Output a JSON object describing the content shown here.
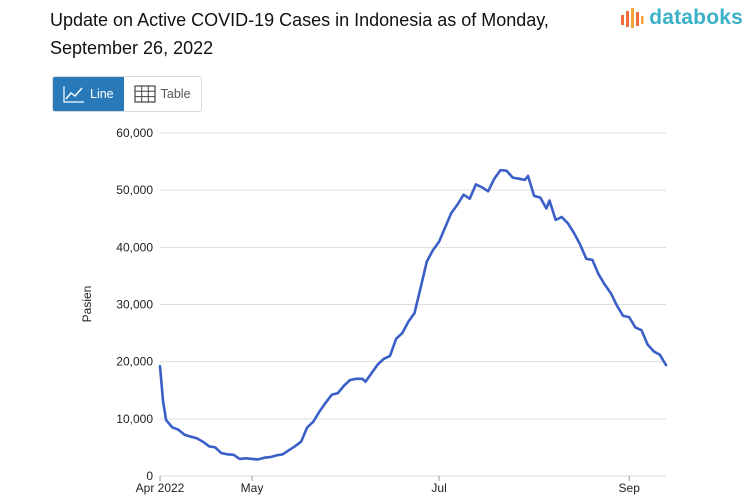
{
  "header": {
    "title_line1": "Update on Active COVID-19 Cases in Indonesia as of Monday,",
    "title_line2": "September 26, 2022",
    "brand": "databoks",
    "brand_icon": "databoks-logo-icon"
  },
  "toolbar": {
    "line_label": "Line",
    "line_icon": "line-chart-icon",
    "table_label": "Table",
    "table_icon": "table-grid-icon"
  },
  "colors": {
    "line": "#3a5fc7",
    "active_button": "#2a7ab9",
    "grid": "#dddddd",
    "brand": "#3ab0c9"
  },
  "chart_data": {
    "type": "line",
    "title": "Update on Active COVID-19 Cases in Indonesia as of Monday, September 26, 2022",
    "xlabel": "",
    "ylabel": "Pasien",
    "ylim": [
      0,
      60000
    ],
    "yticks": [
      "0",
      "10,000",
      "20,000",
      "30,000",
      "40,000",
      "50,000",
      "60,000"
    ],
    "xticks": [
      {
        "label": "Apr 2022",
        "day": 0
      },
      {
        "label": "May",
        "day": 30
      },
      {
        "label": "Jul",
        "day": 91
      },
      {
        "label": "Sep",
        "day": 153
      }
    ],
    "grid": true,
    "legend": "none",
    "series": [
      {
        "x_start": "2022-04-01",
        "x_end": "2022-09-26",
        "points": [
          [
            0,
            19200
          ],
          [
            1,
            13000
          ],
          [
            2,
            9800
          ],
          [
            4,
            8500
          ],
          [
            6,
            8100
          ],
          [
            8,
            7200
          ],
          [
            10,
            6900
          ],
          [
            12,
            6600
          ],
          [
            14,
            6000
          ],
          [
            16,
            5200
          ],
          [
            18,
            5000
          ],
          [
            20,
            4000
          ],
          [
            22,
            3800
          ],
          [
            24,
            3700
          ],
          [
            26,
            3000
          ],
          [
            28,
            3100
          ],
          [
            30,
            3000
          ],
          [
            32,
            2900
          ],
          [
            34,
            3200
          ],
          [
            36,
            3300
          ],
          [
            38,
            3600
          ],
          [
            40,
            3800
          ],
          [
            42,
            4500
          ],
          [
            44,
            5200
          ],
          [
            46,
            6000
          ],
          [
            48,
            8500
          ],
          [
            50,
            9500
          ],
          [
            52,
            11300
          ],
          [
            54,
            12800
          ],
          [
            56,
            14200
          ],
          [
            58,
            14500
          ],
          [
            60,
            15800
          ],
          [
            62,
            16800
          ],
          [
            64,
            17000
          ],
          [
            66,
            17000
          ],
          [
            67,
            16500
          ],
          [
            69,
            18000
          ],
          [
            71,
            19500
          ],
          [
            73,
            20500
          ],
          [
            75,
            21000
          ],
          [
            77,
            24000
          ],
          [
            79,
            25000
          ],
          [
            81,
            27000
          ],
          [
            83,
            28500
          ],
          [
            85,
            33000
          ],
          [
            87,
            37500
          ],
          [
            89,
            39500
          ],
          [
            91,
            41000
          ],
          [
            93,
            43500
          ],
          [
            95,
            46000
          ],
          [
            97,
            47500
          ],
          [
            99,
            49200
          ],
          [
            101,
            48500
          ],
          [
            103,
            51000
          ],
          [
            105,
            50500
          ],
          [
            107,
            49800
          ],
          [
            109,
            52000
          ],
          [
            111,
            53500
          ],
          [
            113,
            53400
          ],
          [
            115,
            52200
          ],
          [
            117,
            52000
          ],
          [
            119,
            51800
          ],
          [
            120,
            52500
          ],
          [
            122,
            49000
          ],
          [
            124,
            48700
          ],
          [
            126,
            46800
          ],
          [
            127,
            48200
          ],
          [
            129,
            44800
          ],
          [
            131,
            45300
          ],
          [
            133,
            44200
          ],
          [
            135,
            42500
          ],
          [
            137,
            40500
          ],
          [
            139,
            38000
          ],
          [
            141,
            37800
          ],
          [
            143,
            35300
          ],
          [
            145,
            33500
          ],
          [
            147,
            32000
          ],
          [
            149,
            29800
          ],
          [
            151,
            28000
          ],
          [
            153,
            27800
          ],
          [
            155,
            26000
          ],
          [
            157,
            25500
          ],
          [
            159,
            23000
          ],
          [
            161,
            21800
          ],
          [
            163,
            21200
          ],
          [
            165,
            19400
          ]
        ]
      }
    ]
  }
}
